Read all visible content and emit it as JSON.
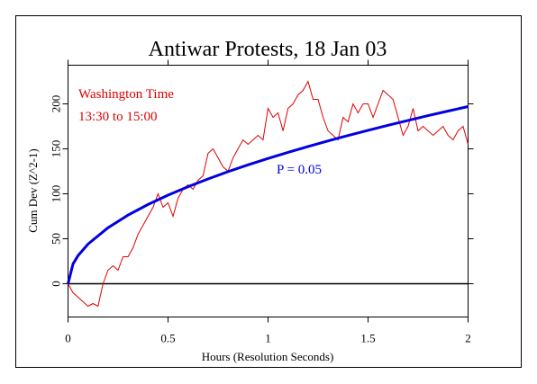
{
  "chart_data": {
    "type": "line",
    "title": "Antiwar Protests, 18 Jan 03",
    "xlabel": "Hours (Resolution Seconds)",
    "ylabel": "Cum Dev (Z^2-1)",
    "annotations": [
      "Washington Time",
      "13:30 to 15:00",
      "P = 0.05"
    ],
    "xlim": [
      0,
      2
    ],
    "xticks": [
      0,
      0.5,
      1,
      1.5,
      2
    ],
    "ylim": [
      -37,
      243
    ],
    "yticks": [
      0,
      50,
      100,
      150,
      200
    ],
    "series": [
      {
        "color": "#e00000",
        "x": [
          0,
          0.025,
          0.05,
          0.075,
          0.1,
          0.125,
          0.15,
          0.175,
          0.2,
          0.225,
          0.25,
          0.275,
          0.3,
          0.325,
          0.35,
          0.375,
          0.4,
          0.425,
          0.45,
          0.475,
          0.5,
          0.525,
          0.55,
          0.575,
          0.6,
          0.625,
          0.65,
          0.675,
          0.7,
          0.725,
          0.75,
          0.775,
          0.8,
          0.825,
          0.85,
          0.875,
          0.9,
          0.925,
          0.95,
          0.975,
          1,
          1.025,
          1.05,
          1.075,
          1.1,
          1.125,
          1.15,
          1.175,
          1.2,
          1.225,
          1.25,
          1.275,
          1.3,
          1.325,
          1.35,
          1.375,
          1.4,
          1.425,
          1.45,
          1.475,
          1.5,
          1.525,
          1.55,
          1.575,
          1.6,
          1.625,
          1.65,
          1.675,
          1.7,
          1.725,
          1.75,
          1.775,
          1.8,
          1.825,
          1.85,
          1.875,
          1.9,
          1.925,
          1.95,
          1.975,
          2
        ],
        "values": [
          0,
          -10,
          -15,
          -20,
          -25,
          -22,
          -25,
          0,
          15,
          20,
          15,
          30,
          30,
          40,
          55,
          65,
          75,
          85,
          100,
          85,
          90,
          75,
          95,
          105,
          110,
          105,
          115,
          120,
          145,
          150,
          140,
          130,
          125,
          140,
          150,
          160,
          155,
          160,
          165,
          160,
          195,
          185,
          190,
          170,
          195,
          200,
          210,
          215,
          225,
          205,
          205,
          185,
          170,
          165,
          160,
          185,
          180,
          200,
          190,
          200,
          200,
          185,
          200,
          215,
          210,
          205,
          185,
          165,
          175,
          195,
          170,
          175,
          170,
          165,
          170,
          175,
          165,
          160,
          170,
          175,
          155
        ]
      },
      {
        "color": "#0000e0",
        "x": [
          0,
          0.025,
          0.05,
          0.1,
          0.2,
          0.3,
          0.4,
          0.5,
          0.6,
          0.7,
          0.8,
          0.9,
          1,
          1.1,
          1.2,
          1.3,
          1.4,
          1.5,
          1.6,
          1.7,
          1.8,
          1.9,
          2
        ],
        "values": [
          0,
          22.0,
          31.2,
          44.1,
          62.3,
          76.3,
          88.1,
          98.5,
          107.9,
          116.5,
          124.6,
          132.2,
          139.3,
          146.1,
          152.6,
          158.8,
          164.8,
          170.6,
          176.2,
          181.6,
          186.9,
          192.0,
          197.0
        ]
      }
    ]
  }
}
